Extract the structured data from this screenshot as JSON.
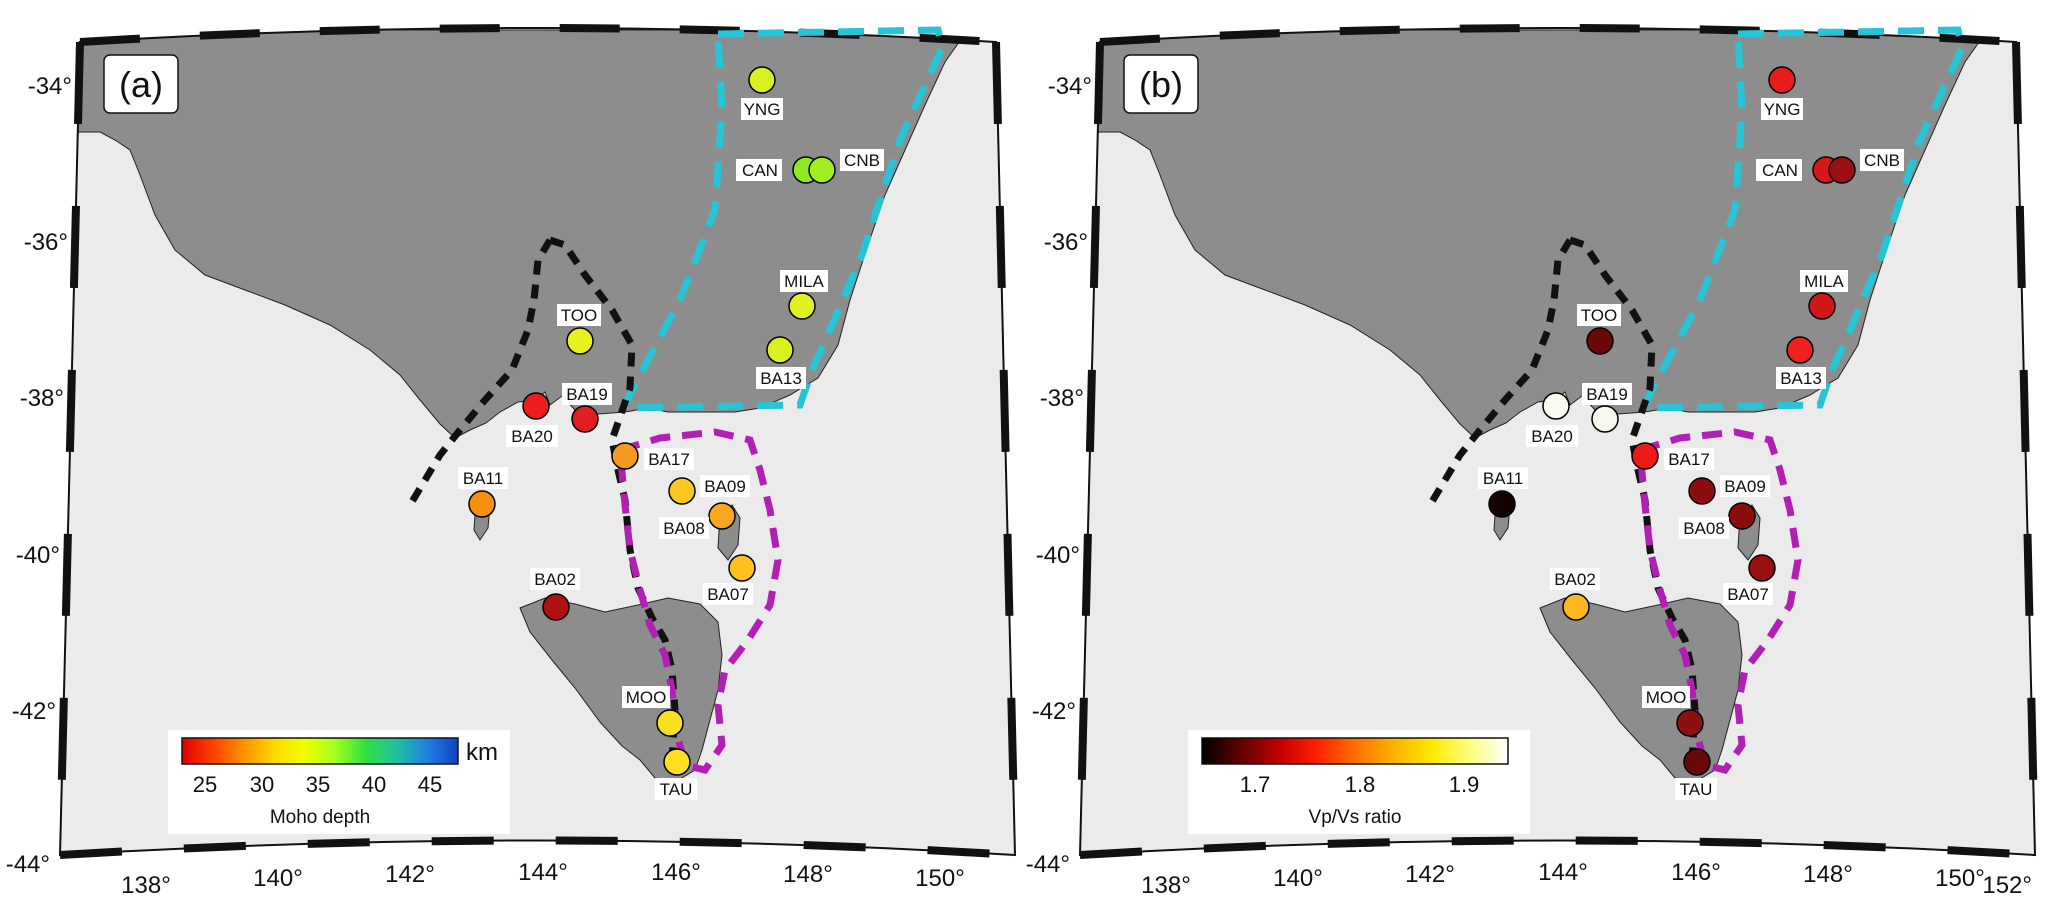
{
  "colors": {
    "sea": "#ebebeb",
    "land": "#8d8d8d",
    "cyan_region": "#26c4d4",
    "magenta_region": "#b11fb5",
    "black_region": "#111111",
    "frame_dark": "#111111",
    "frame_light": "#ffffff"
  },
  "lon_ticks": [
    "138°",
    "140°",
    "142°",
    "144°",
    "146°",
    "148°",
    "150°",
    "152°"
  ],
  "lat_ticks": [
    "-34°",
    "-36°",
    "-38°",
    "-40°",
    "-42°",
    "-44°"
  ],
  "panels": [
    {
      "letter": "(a)",
      "colorbar": {
        "ticks": [
          "25",
          "30",
          "35",
          "40",
          "45"
        ],
        "unit": "km",
        "title": "Moho depth",
        "stops": [
          "#e00000",
          "#ff4000",
          "#ff9000",
          "#ffd800",
          "#f0ff00",
          "#a0ff20",
          "#30e040",
          "#20c0a0",
          "#2080e0",
          "#1040c0"
        ]
      },
      "stations": [
        {
          "name": "YNG",
          "color": "#d8f020"
        },
        {
          "name": "CAN",
          "color": "#90e820"
        },
        {
          "name": "CNB",
          "color": "#a0f020"
        },
        {
          "name": "MILA",
          "color": "#e0f020"
        },
        {
          "name": "BA13",
          "color": "#d8f020"
        },
        {
          "name": "TOO",
          "color": "#e8f020"
        },
        {
          "name": "BA19",
          "color": "#e02020"
        },
        {
          "name": "BA20",
          "color": "#ee1c1c"
        },
        {
          "name": "BA17",
          "color": "#f59a20"
        },
        {
          "name": "BA11",
          "color": "#f59010"
        },
        {
          "name": "BA09",
          "color": "#ffc820"
        },
        {
          "name": "BA08",
          "color": "#f7a820"
        },
        {
          "name": "BA07",
          "color": "#ffc020"
        },
        {
          "name": "BA02",
          "color": "#b01010"
        },
        {
          "name": "MOO",
          "color": "#f8e020"
        },
        {
          "name": "TAU",
          "color": "#ffe020"
        }
      ]
    },
    {
      "letter": "(b)",
      "colorbar": {
        "ticks": [
          "1.7",
          "1.8",
          "1.9"
        ],
        "unit": "",
        "title": "Vp/Vs ratio",
        "stops": [
          "#000000",
          "#600000",
          "#c00000",
          "#ff2000",
          "#ff7000",
          "#ffb000",
          "#ffe800",
          "#ffff80",
          "#ffffff"
        ]
      },
      "stations": [
        {
          "name": "YNG",
          "color": "#e81c1c"
        },
        {
          "name": "CAN",
          "color": "#d81818"
        },
        {
          "name": "CNB",
          "color": "#9a1010"
        },
        {
          "name": "MILA",
          "color": "#d01818"
        },
        {
          "name": "BA13",
          "color": "#ee2020"
        },
        {
          "name": "TOO",
          "color": "#6a0808"
        },
        {
          "name": "BA19",
          "color": "#f8f8ee"
        },
        {
          "name": "BA20",
          "color": "#fafaf0"
        },
        {
          "name": "BA17",
          "color": "#ee1818"
        },
        {
          "name": "BA11",
          "color": "#140202"
        },
        {
          "name": "BA09",
          "color": "#8a0c0c"
        },
        {
          "name": "BA08",
          "color": "#8a0c0c"
        },
        {
          "name": "BA07",
          "color": "#9a1010"
        },
        {
          "name": "BA02",
          "color": "#ffb820"
        },
        {
          "name": "MOO",
          "color": "#8c1010"
        },
        {
          "name": "TAU",
          "color": "#6a0808"
        }
      ]
    }
  ]
}
